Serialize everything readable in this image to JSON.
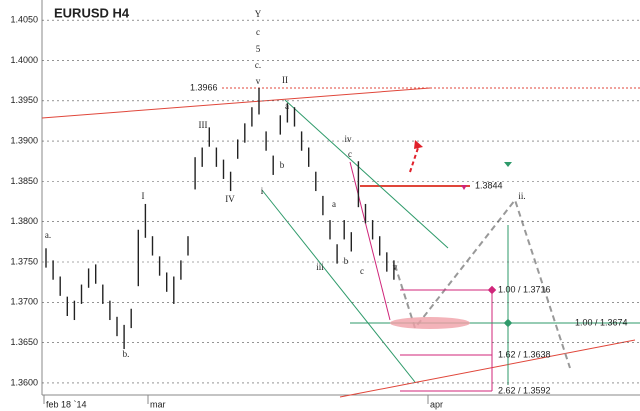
{
  "chart_data": {
    "type": "range-bar",
    "title": "EURUSD H4",
    "color": "#222222",
    "grid": true,
    "ylim": [
      1.3585,
      1.4075
    ],
    "yticks": [
      {
        "value": 1.405,
        "label": "1.4050"
      },
      {
        "value": 1.4,
        "label": "1.4000"
      },
      {
        "value": 1.395,
        "label": "1.3950"
      },
      {
        "value": 1.39,
        "label": "1.3900"
      },
      {
        "value": 1.385,
        "label": "1.3850"
      },
      {
        "value": 1.38,
        "label": "1.3800"
      },
      {
        "value": 1.375,
        "label": "1.3750"
      },
      {
        "value": 1.37,
        "label": "1.3700"
      },
      {
        "value": 1.365,
        "label": "1.3650"
      },
      {
        "value": 1.36,
        "label": "1.3600"
      }
    ],
    "x_labels": [
      "feb 18 `14",
      "mar",
      "apr"
    ],
    "high": [
      1.3767,
      1.3752,
      1.3732,
      1.3707,
      1.3702,
      1.3722,
      1.3742,
      1.3747,
      1.3722,
      1.3702,
      1.3682,
      1.3672,
      1.3692,
      1.379,
      1.3822,
      1.3782,
      1.3757,
      1.3737,
      1.3732,
      1.3752,
      1.3782,
      1.388,
      1.3892,
      1.3917,
      1.3892,
      1.3877,
      1.3862,
      1.3902,
      1.3922,
      1.3942,
      1.3966,
      1.3912,
      1.3882,
      1.3932,
      1.3947,
      1.3942,
      1.3912,
      1.3892,
      1.3862,
      1.3832,
      1.3802,
      1.3772,
      1.3802,
      1.3787,
      1.3875,
      1.3822,
      1.3802,
      1.3782,
      1.3762,
      1.3752
    ],
    "low": [
      1.3743,
      1.3728,
      1.3708,
      1.3683,
      1.3678,
      1.3698,
      1.3718,
      1.3723,
      1.3698,
      1.3678,
      1.3658,
      1.3642,
      1.3668,
      1.372,
      1.378,
      1.3758,
      1.3733,
      1.3713,
      1.3698,
      1.3728,
      1.3758,
      1.384,
      1.3868,
      1.3893,
      1.3868,
      1.3853,
      1.3838,
      1.3878,
      1.3898,
      1.3918,
      1.3933,
      1.3888,
      1.3858,
      1.3908,
      1.3923,
      1.3918,
      1.3888,
      1.3868,
      1.3838,
      1.3808,
      1.3778,
      1.3748,
      1.3778,
      1.3763,
      1.3818,
      1.3798,
      1.3778,
      1.3758,
      1.3738,
      1.3728
    ],
    "annotations": [
      {
        "text": "1.3966",
        "color": "#222222"
      },
      {
        "text": "1.3844",
        "color": "#222222"
      },
      {
        "text": "1.00 / 1.3716",
        "color": "#d0257a"
      },
      {
        "text": "1.00 / 1.3674",
        "color": "#2e9a6a"
      },
      {
        "text": "1.62 / 1.3638",
        "color": "#d0257a"
      },
      {
        "text": "2.62 / 1.3592",
        "color": "#d0257a"
      },
      {
        "text": "Y",
        "color": "#c0392b"
      },
      {
        "text": "c",
        "color": "#2a4fbf"
      },
      {
        "text": "5",
        "color": "#c0392b"
      },
      {
        "text": "c.",
        "color": "#888888"
      },
      {
        "text": "v",
        "color": "#2e9a6a"
      },
      {
        "text": "II",
        "color": "#2e9a6a"
      },
      {
        "text": "III",
        "color": "#2e9a6a"
      },
      {
        "text": "IV",
        "color": "#2e9a6a"
      },
      {
        "text": "I",
        "color": "#2e9a6a"
      },
      {
        "text": "i",
        "color": "#2e9a6a"
      },
      {
        "text": "ii.",
        "color": "#888888"
      },
      {
        "text": "a",
        "color": "#d0257a"
      },
      {
        "text": "b",
        "color": "#d0257a"
      },
      {
        "text": "c",
        "color": "#d0257a"
      },
      {
        "text": "iv",
        "color": "#2e9a6a"
      },
      {
        "text": "iii",
        "color": "#2e9a6a"
      },
      {
        "text": "v",
        "color": "#888888"
      },
      {
        "text": "a",
        "color": "#d0257a"
      },
      {
        "text": "b",
        "color": "#d0257a"
      },
      {
        "text": "c",
        "color": "#d0257a"
      },
      {
        "text": "a.",
        "color": "#888888"
      },
      {
        "text": "b.",
        "color": "#888888"
      }
    ]
  }
}
